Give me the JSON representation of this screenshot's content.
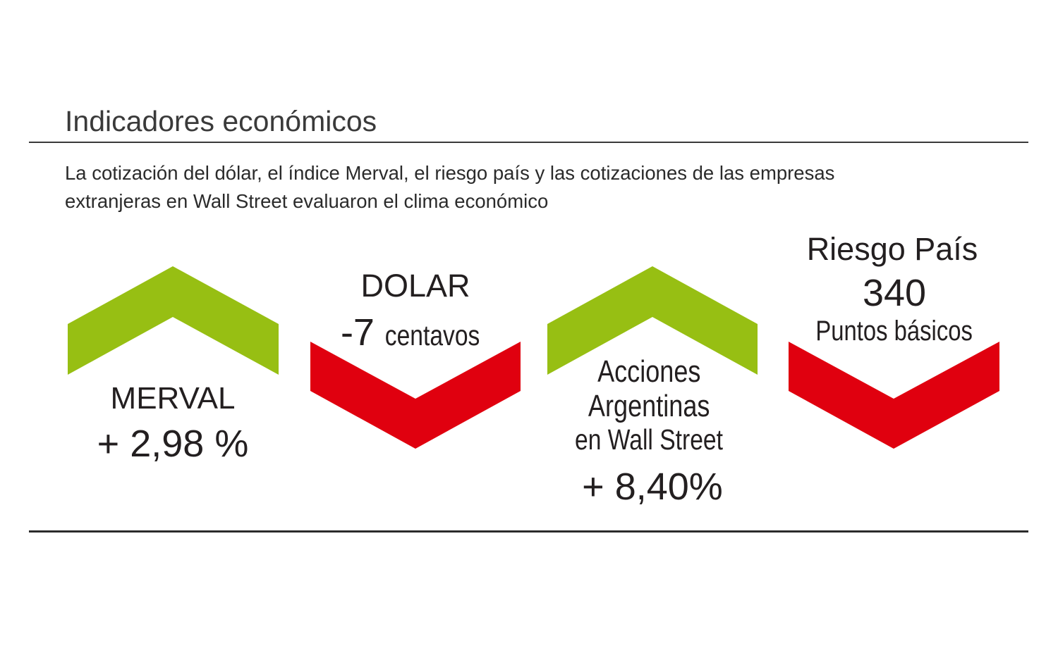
{
  "header": {
    "title": "Indicadores económicos",
    "subtitle_line1": "La cotización del dólar, el índice Merval, el riesgo país y las cotizaciones de las empresas",
    "subtitle_line2": "extranjeras en Wall Street evaluaron el clima económico"
  },
  "colors": {
    "up": "#97bf13",
    "down": "#e0000f",
    "text": "#231f20"
  },
  "indicators": {
    "merval": {
      "direction": "up",
      "icon": "chevron-up-icon",
      "name": "MERVAL",
      "value": "+ 2,98 %"
    },
    "dolar": {
      "direction": "down",
      "icon": "chevron-down-icon",
      "name": "DOLAR",
      "value": "-7",
      "unit": "centavos"
    },
    "acciones": {
      "direction": "up",
      "icon": "chevron-up-icon",
      "name_line1": "Acciones",
      "name_line2": "Argentinas",
      "name_line3": "en Wall Street",
      "value": "+ 8,40%"
    },
    "riesgo": {
      "direction": "down",
      "icon": "chevron-down-icon",
      "name": "Riesgo País",
      "value": "340",
      "unit": "Puntos básicos"
    }
  }
}
